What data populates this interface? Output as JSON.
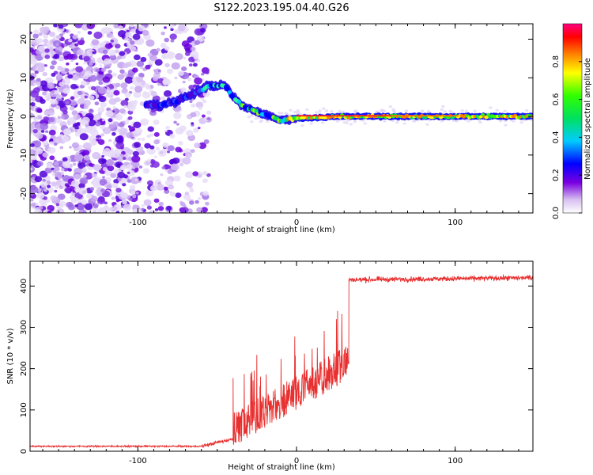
{
  "page": {
    "title": "S122.2023.195.04.40.G26"
  },
  "chart_data": [
    {
      "type": "heatmap",
      "title": "S122.2023.195.04.40.G26",
      "xlabel": "Height of straight line (km)",
      "ylabel": "Frequency (Hz)",
      "xlim": [
        -168,
        149
      ],
      "ylim": [
        -25,
        24
      ],
      "xticks": [
        "-100",
        "0",
        "100"
      ],
      "yticks": [
        "-20",
        "-10",
        "0",
        "10",
        "20"
      ],
      "colorbar": {
        "label": "Normalized spectral amplitude",
        "range": [
          0,
          1
        ],
        "ticks": [
          "0.0",
          "0.2",
          "0.4",
          "0.6",
          "0.8"
        ]
      },
      "ridge": [
        {
          "x": -95,
          "y": 3
        },
        {
          "x": -85,
          "y": 3
        },
        {
          "x": -75,
          "y": 4
        },
        {
          "x": -65,
          "y": 6
        },
        {
          "x": -55,
          "y": 8
        },
        {
          "x": -45,
          "y": 8
        },
        {
          "x": -40,
          "y": 5
        },
        {
          "x": -35,
          "y": 3
        },
        {
          "x": -30,
          "y": 2
        },
        {
          "x": -20,
          "y": 0.5
        },
        {
          "x": -10,
          "y": -1
        },
        {
          "x": 0,
          "y": -0.5
        },
        {
          "x": 30,
          "y": 0
        },
        {
          "x": 80,
          "y": 0
        },
        {
          "x": 149,
          "y": 0
        }
      ]
    },
    {
      "type": "line",
      "xlabel": "Height of straight line (km)",
      "ylabel": "SNR (10 * v/v)",
      "xlim": [
        -168,
        149
      ],
      "ylim": [
        0,
        460
      ],
      "xticks": [
        "-100",
        "0",
        "100"
      ],
      "yticks": [
        "0",
        "100",
        "200",
        "300",
        "400"
      ],
      "color": "#e83030",
      "segments": [
        {
          "x": [
            -168,
            -60
          ],
          "y": [
            12,
            12
          ],
          "noise": 4
        },
        {
          "x": [
            -60,
            -40
          ],
          "y": [
            12,
            30
          ],
          "noise": 8
        },
        {
          "x": [
            -40,
            33
          ],
          "y": [
            60,
            225
          ],
          "noise": 60
        },
        {
          "x": 33,
          "step": [
            225,
            410
          ]
        },
        {
          "x": [
            33,
            149
          ],
          "y": [
            415,
            420
          ],
          "noise": 12
        }
      ]
    }
  ]
}
